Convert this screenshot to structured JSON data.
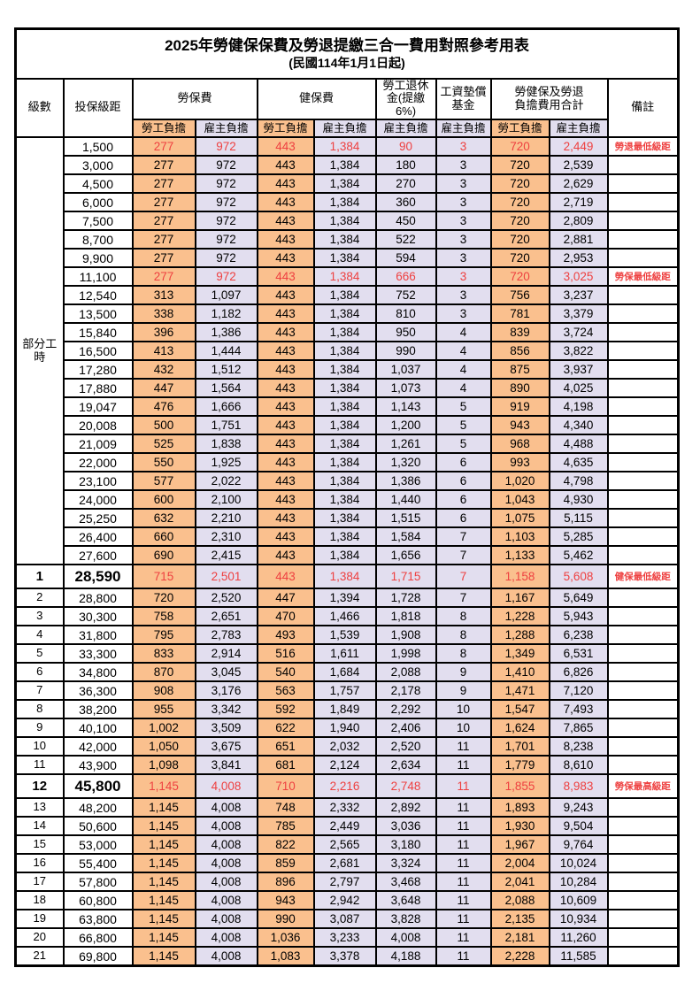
{
  "title": "2025年勞健保保費及勞退提繳三合一費用對照參考用表",
  "subtitle": "(民國114年1月1日起)",
  "colors": {
    "worker_bg": "#FAC08E",
    "employer_bg": "#E2DEEF",
    "highlight_text": "#EE4040",
    "border": "#000000"
  },
  "header": {
    "level": "級數",
    "bracket": "投保級距",
    "labor_insurance": "勞保費",
    "health_insurance": "健保費",
    "pension": "勞工退休\n金(提繳6%)",
    "wage_fund": "工資墊償\n基金",
    "total": "勞健保及勞退\n負擔費用合計",
    "remark": "備註",
    "worker": "勞工負擔",
    "employer": "雇主負擔"
  },
  "groups": {
    "part_time_label": "部分工時"
  },
  "rows": [
    {
      "level": "",
      "bracket": "1,500",
      "values": [
        "277",
        "972",
        "443",
        "1,384",
        "90",
        "3",
        "720",
        "2,449"
      ],
      "remark": "勞退最低級距",
      "highlight": true,
      "big": false
    },
    {
      "level": "",
      "bracket": "3,000",
      "values": [
        "277",
        "972",
        "443",
        "1,384",
        "180",
        "3",
        "720",
        "2,539"
      ],
      "remark": "",
      "highlight": false,
      "big": false
    },
    {
      "level": "",
      "bracket": "4,500",
      "values": [
        "277",
        "972",
        "443",
        "1,384",
        "270",
        "3",
        "720",
        "2,629"
      ],
      "remark": "",
      "highlight": false,
      "big": false
    },
    {
      "level": "",
      "bracket": "6,000",
      "values": [
        "277",
        "972",
        "443",
        "1,384",
        "360",
        "3",
        "720",
        "2,719"
      ],
      "remark": "",
      "highlight": false,
      "big": false
    },
    {
      "level": "",
      "bracket": "7,500",
      "values": [
        "277",
        "972",
        "443",
        "1,384",
        "450",
        "3",
        "720",
        "2,809"
      ],
      "remark": "",
      "highlight": false,
      "big": false
    },
    {
      "level": "",
      "bracket": "8,700",
      "values": [
        "277",
        "972",
        "443",
        "1,384",
        "522",
        "3",
        "720",
        "2,881"
      ],
      "remark": "",
      "highlight": false,
      "big": false
    },
    {
      "level": "",
      "bracket": "9,900",
      "values": [
        "277",
        "972",
        "443",
        "1,384",
        "594",
        "3",
        "720",
        "2,953"
      ],
      "remark": "",
      "highlight": false,
      "big": false
    },
    {
      "level": "",
      "bracket": "11,100",
      "values": [
        "277",
        "972",
        "443",
        "1,384",
        "666",
        "3",
        "720",
        "3,025"
      ],
      "remark": "勞保最低級距",
      "highlight": true,
      "big": false
    },
    {
      "level": "",
      "bracket": "12,540",
      "values": [
        "313",
        "1,097",
        "443",
        "1,384",
        "752",
        "3",
        "756",
        "3,237"
      ],
      "remark": "",
      "highlight": false,
      "big": false
    },
    {
      "level": "",
      "bracket": "13,500",
      "values": [
        "338",
        "1,182",
        "443",
        "1,384",
        "810",
        "3",
        "781",
        "3,379"
      ],
      "remark": "",
      "highlight": false,
      "big": false
    },
    {
      "level": "",
      "bracket": "15,840",
      "values": [
        "396",
        "1,386",
        "443",
        "1,384",
        "950",
        "4",
        "839",
        "3,724"
      ],
      "remark": "",
      "highlight": false,
      "big": false
    },
    {
      "level": "",
      "bracket": "16,500",
      "values": [
        "413",
        "1,444",
        "443",
        "1,384",
        "990",
        "4",
        "856",
        "3,822"
      ],
      "remark": "",
      "highlight": false,
      "big": false
    },
    {
      "level": "",
      "bracket": "17,280",
      "values": [
        "432",
        "1,512",
        "443",
        "1,384",
        "1,037",
        "4",
        "875",
        "3,937"
      ],
      "remark": "",
      "highlight": false,
      "big": false
    },
    {
      "level": "",
      "bracket": "17,880",
      "values": [
        "447",
        "1,564",
        "443",
        "1,384",
        "1,073",
        "4",
        "890",
        "4,025"
      ],
      "remark": "",
      "highlight": false,
      "big": false
    },
    {
      "level": "",
      "bracket": "19,047",
      "values": [
        "476",
        "1,666",
        "443",
        "1,384",
        "1,143",
        "5",
        "919",
        "4,198"
      ],
      "remark": "",
      "highlight": false,
      "big": false
    },
    {
      "level": "",
      "bracket": "20,008",
      "values": [
        "500",
        "1,751",
        "443",
        "1,384",
        "1,200",
        "5",
        "943",
        "4,340"
      ],
      "remark": "",
      "highlight": false,
      "big": false
    },
    {
      "level": "",
      "bracket": "21,009",
      "values": [
        "525",
        "1,838",
        "443",
        "1,384",
        "1,261",
        "5",
        "968",
        "4,488"
      ],
      "remark": "",
      "highlight": false,
      "big": false
    },
    {
      "level": "",
      "bracket": "22,000",
      "values": [
        "550",
        "1,925",
        "443",
        "1,384",
        "1,320",
        "6",
        "993",
        "4,635"
      ],
      "remark": "",
      "highlight": false,
      "big": false
    },
    {
      "level": "",
      "bracket": "23,100",
      "values": [
        "577",
        "2,022",
        "443",
        "1,384",
        "1,386",
        "6",
        "1,020",
        "4,798"
      ],
      "remark": "",
      "highlight": false,
      "big": false
    },
    {
      "level": "",
      "bracket": "24,000",
      "values": [
        "600",
        "2,100",
        "443",
        "1,384",
        "1,440",
        "6",
        "1,043",
        "4,930"
      ],
      "remark": "",
      "highlight": false,
      "big": false
    },
    {
      "level": "",
      "bracket": "25,250",
      "values": [
        "632",
        "2,210",
        "443",
        "1,384",
        "1,515",
        "6",
        "1,075",
        "5,115"
      ],
      "remark": "",
      "highlight": false,
      "big": false
    },
    {
      "level": "",
      "bracket": "26,400",
      "values": [
        "660",
        "2,310",
        "443",
        "1,384",
        "1,584",
        "7",
        "1,103",
        "5,285"
      ],
      "remark": "",
      "highlight": false,
      "big": false
    },
    {
      "level": "",
      "bracket": "27,600",
      "values": [
        "690",
        "2,415",
        "443",
        "1,384",
        "1,656",
        "7",
        "1,133",
        "5,462"
      ],
      "remark": "",
      "highlight": false,
      "big": false
    },
    {
      "level": "1",
      "bracket": "28,590",
      "values": [
        "715",
        "2,501",
        "443",
        "1,384",
        "1,715",
        "7",
        "1,158",
        "5,608"
      ],
      "remark": "健保最低級距",
      "highlight": true,
      "big": true
    },
    {
      "level": "2",
      "bracket": "28,800",
      "values": [
        "720",
        "2,520",
        "447",
        "1,394",
        "1,728",
        "7",
        "1,167",
        "5,649"
      ],
      "remark": "",
      "highlight": false,
      "big": false
    },
    {
      "level": "3",
      "bracket": "30,300",
      "values": [
        "758",
        "2,651",
        "470",
        "1,466",
        "1,818",
        "8",
        "1,228",
        "5,943"
      ],
      "remark": "",
      "highlight": false,
      "big": false
    },
    {
      "level": "4",
      "bracket": "31,800",
      "values": [
        "795",
        "2,783",
        "493",
        "1,539",
        "1,908",
        "8",
        "1,288",
        "6,238"
      ],
      "remark": "",
      "highlight": false,
      "big": false
    },
    {
      "level": "5",
      "bracket": "33,300",
      "values": [
        "833",
        "2,914",
        "516",
        "1,611",
        "1,998",
        "8",
        "1,349",
        "6,531"
      ],
      "remark": "",
      "highlight": false,
      "big": false
    },
    {
      "level": "6",
      "bracket": "34,800",
      "values": [
        "870",
        "3,045",
        "540",
        "1,684",
        "2,088",
        "9",
        "1,410",
        "6,826"
      ],
      "remark": "",
      "highlight": false,
      "big": false
    },
    {
      "level": "7",
      "bracket": "36,300",
      "values": [
        "908",
        "3,176",
        "563",
        "1,757",
        "2,178",
        "9",
        "1,471",
        "7,120"
      ],
      "remark": "",
      "highlight": false,
      "big": false
    },
    {
      "level": "8",
      "bracket": "38,200",
      "values": [
        "955",
        "3,342",
        "592",
        "1,849",
        "2,292",
        "10",
        "1,547",
        "7,493"
      ],
      "remark": "",
      "highlight": false,
      "big": false
    },
    {
      "level": "9",
      "bracket": "40,100",
      "values": [
        "1,002",
        "3,509",
        "622",
        "1,940",
        "2,406",
        "10",
        "1,624",
        "7,865"
      ],
      "remark": "",
      "highlight": false,
      "big": false
    },
    {
      "level": "10",
      "bracket": "42,000",
      "values": [
        "1,050",
        "3,675",
        "651",
        "2,032",
        "2,520",
        "11",
        "1,701",
        "8,238"
      ],
      "remark": "",
      "highlight": false,
      "big": false
    },
    {
      "level": "11",
      "bracket": "43,900",
      "values": [
        "1,098",
        "3,841",
        "681",
        "2,124",
        "2,634",
        "11",
        "1,779",
        "8,610"
      ],
      "remark": "",
      "highlight": false,
      "big": false
    },
    {
      "level": "12",
      "bracket": "45,800",
      "values": [
        "1,145",
        "4,008",
        "710",
        "2,216",
        "2,748",
        "11",
        "1,855",
        "8,983"
      ],
      "remark": "勞保最高級距",
      "highlight": true,
      "big": true
    },
    {
      "level": "13",
      "bracket": "48,200",
      "values": [
        "1,145",
        "4,008",
        "748",
        "2,332",
        "2,892",
        "11",
        "1,893",
        "9,243"
      ],
      "remark": "",
      "highlight": false,
      "big": false
    },
    {
      "level": "14",
      "bracket": "50,600",
      "values": [
        "1,145",
        "4,008",
        "785",
        "2,449",
        "3,036",
        "11",
        "1,930",
        "9,504"
      ],
      "remark": "",
      "highlight": false,
      "big": false
    },
    {
      "level": "15",
      "bracket": "53,000",
      "values": [
        "1,145",
        "4,008",
        "822",
        "2,565",
        "3,180",
        "11",
        "1,967",
        "9,764"
      ],
      "remark": "",
      "highlight": false,
      "big": false
    },
    {
      "level": "16",
      "bracket": "55,400",
      "values": [
        "1,145",
        "4,008",
        "859",
        "2,681",
        "3,324",
        "11",
        "2,004",
        "10,024"
      ],
      "remark": "",
      "highlight": false,
      "big": false
    },
    {
      "level": "17",
      "bracket": "57,800",
      "values": [
        "1,145",
        "4,008",
        "896",
        "2,797",
        "3,468",
        "11",
        "2,041",
        "10,284"
      ],
      "remark": "",
      "highlight": false,
      "big": false
    },
    {
      "level": "18",
      "bracket": "60,800",
      "values": [
        "1,145",
        "4,008",
        "943",
        "2,942",
        "3,648",
        "11",
        "2,088",
        "10,609"
      ],
      "remark": "",
      "highlight": false,
      "big": false
    },
    {
      "level": "19",
      "bracket": "63,800",
      "values": [
        "1,145",
        "4,008",
        "990",
        "3,087",
        "3,828",
        "11",
        "2,135",
        "10,934"
      ],
      "remark": "",
      "highlight": false,
      "big": false
    },
    {
      "level": "20",
      "bracket": "66,800",
      "values": [
        "1,145",
        "4,008",
        "1,036",
        "3,233",
        "4,008",
        "11",
        "2,181",
        "11,260"
      ],
      "remark": "",
      "highlight": false,
      "big": false
    },
    {
      "level": "21",
      "bracket": "69,800",
      "values": [
        "1,145",
        "4,008",
        "1,083",
        "3,378",
        "4,188",
        "11",
        "2,228",
        "11,585"
      ],
      "remark": "",
      "highlight": false,
      "big": false
    }
  ]
}
